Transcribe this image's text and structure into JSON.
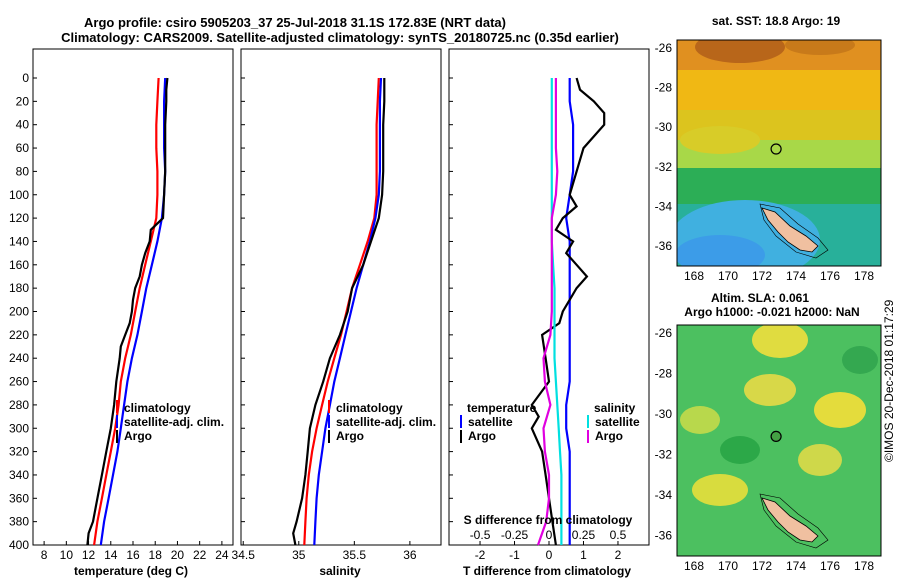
{
  "title_line1": "Argo profile: csiro 5905203_37 25-Jul-2018 31.1S 172.83E (NRT data)",
  "title_line2": "Climatology: CARS2009. Satellite-adjusted climatology: synTS_20180725.nc (0.35d earlier)",
  "credit": "©IMOS 20-Dec-2018 01:17:29",
  "colors": {
    "climatology": "#ff0000",
    "satellite": "#0000ff",
    "argo": "#000000",
    "sat_s": "#00e0e0",
    "argo_s": "#e000e0"
  },
  "chart_data": [
    {
      "type": "line",
      "id": "temperature",
      "xlabel": "temperature (deg C)",
      "xlim": [
        7,
        25
      ],
      "xticks": [
        8,
        10,
        12,
        14,
        16,
        18,
        20,
        22,
        24
      ],
      "ylim": [
        0,
        400
      ],
      "yticks": [
        0,
        20,
        40,
        60,
        80,
        100,
        120,
        140,
        160,
        180,
        200,
        220,
        240,
        260,
        280,
        300,
        320,
        340,
        360,
        380,
        400
      ],
      "legend": [
        "climatology",
        "satellite-adj. clim.",
        "Argo"
      ],
      "series": [
        {
          "name": "climatology",
          "color": "#ff0000",
          "depth": [
            0,
            20,
            40,
            60,
            80,
            100,
            120,
            140,
            160,
            180,
            200,
            220,
            240,
            260,
            280,
            300,
            320,
            340,
            360,
            380,
            400
          ],
          "values": [
            18.3,
            18.2,
            18.1,
            18.1,
            18.2,
            18.2,
            18.1,
            17.6,
            17.1,
            16.6,
            16.2,
            15.8,
            15.3,
            14.9,
            14.7,
            14.4,
            14.0,
            13.6,
            13.2,
            12.8,
            12.5
          ]
        },
        {
          "name": "satellite-adj. clim.",
          "color": "#0000ff",
          "depth": [
            0,
            20,
            40,
            60,
            80,
            100,
            120,
            140,
            160,
            180,
            200,
            220,
            240,
            260,
            280,
            300,
            320,
            340,
            360,
            380,
            400
          ],
          "values": [
            18.9,
            18.8,
            18.8,
            18.8,
            18.9,
            18.8,
            18.6,
            18.2,
            17.7,
            17.2,
            16.8,
            16.4,
            15.9,
            15.5,
            15.2,
            14.9,
            14.6,
            14.2,
            13.8,
            13.4,
            13.1
          ]
        },
        {
          "name": "Argo",
          "color": "#000000",
          "depth": [
            0,
            10,
            20,
            40,
            60,
            80,
            100,
            120,
            130,
            140,
            150,
            160,
            170,
            180,
            190,
            200,
            210,
            220,
            230,
            240,
            260,
            280,
            300,
            320,
            340,
            360,
            380,
            390,
            400
          ],
          "values": [
            19.1,
            19.0,
            19.0,
            18.9,
            18.9,
            18.9,
            18.8,
            18.7,
            17.6,
            17.5,
            17.1,
            16.8,
            16.6,
            16.2,
            16.0,
            15.9,
            15.7,
            15.3,
            14.9,
            14.8,
            14.5,
            14.3,
            14.0,
            13.6,
            13.2,
            12.8,
            12.4,
            12.0,
            11.9
          ]
        }
      ]
    },
    {
      "type": "line",
      "id": "salinity",
      "xlabel": "salinity",
      "xlim": [
        34.48,
        36.28
      ],
      "xticks": [
        34.5,
        35,
        35.5,
        36
      ],
      "xticklabels": [
        "34.5",
        "35",
        "35.5",
        "36"
      ],
      "ylim": [
        0,
        400
      ],
      "legend": [
        "climatology",
        "satellite-adj. clim.",
        "Argo"
      ],
      "series": [
        {
          "name": "climatology",
          "color": "#ff0000",
          "depth": [
            0,
            20,
            40,
            60,
            80,
            100,
            120,
            140,
            160,
            180,
            200,
            220,
            240,
            260,
            280,
            300,
            320,
            340,
            360,
            380,
            400
          ],
          "values": [
            35.72,
            35.71,
            35.7,
            35.7,
            35.7,
            35.7,
            35.68,
            35.62,
            35.55,
            35.48,
            35.43,
            35.38,
            35.32,
            35.26,
            35.21,
            35.16,
            35.12,
            35.09,
            35.07,
            35.06,
            35.05
          ]
        },
        {
          "name": "satellite-adj. clim.",
          "color": "#0000ff",
          "depth": [
            0,
            20,
            40,
            60,
            80,
            100,
            120,
            140,
            160,
            180,
            200,
            220,
            240,
            260,
            280,
            300,
            320,
            340,
            360,
            380,
            400
          ],
          "values": [
            35.74,
            35.73,
            35.73,
            35.73,
            35.73,
            35.72,
            35.69,
            35.64,
            35.58,
            35.52,
            35.47,
            35.42,
            35.37,
            35.32,
            35.28,
            35.24,
            35.21,
            35.18,
            35.16,
            35.15,
            35.14
          ]
        },
        {
          "name": "Argo",
          "color": "#000000",
          "depth": [
            0,
            20,
            40,
            60,
            80,
            100,
            120,
            140,
            160,
            180,
            200,
            220,
            240,
            260,
            280,
            300,
            320,
            340,
            360,
            380,
            390,
            400
          ],
          "values": [
            35.77,
            35.77,
            35.76,
            35.76,
            35.76,
            35.75,
            35.72,
            35.65,
            35.58,
            35.48,
            35.44,
            35.37,
            35.28,
            35.22,
            35.15,
            35.1,
            35.08,
            35.06,
            35.03,
            34.98,
            34.95,
            34.97
          ]
        }
      ]
    },
    {
      "type": "line",
      "id": "difference",
      "xlabel": "T difference from climatology",
      "xlabel2": "S difference from climatology",
      "xlim": [
        -2.9,
        2.9
      ],
      "xticks": [
        -2,
        -1,
        0,
        1,
        2
      ],
      "xticks2": [
        -0.5,
        -0.25,
        0,
        0.25,
        0.5
      ],
      "xticks2labels": [
        "-0.5",
        "-0.25",
        "0",
        "0.25",
        "0.5"
      ],
      "ylim": [
        0,
        400
      ],
      "legend_temperature": {
        "title": "temperature",
        "items": [
          "satellite",
          "Argo"
        ]
      },
      "legend_salinity": {
        "title": "salinity",
        "items": [
          "satellite",
          "Argo"
        ]
      },
      "series": [
        {
          "name": "T satellite",
          "color": "#0000ff",
          "depth": [
            0,
            20,
            40,
            60,
            80,
            100,
            120,
            140,
            160,
            180,
            200,
            220,
            240,
            260,
            280,
            300,
            320,
            340,
            360,
            380,
            400
          ],
          "values": [
            0.6,
            0.6,
            0.7,
            0.7,
            0.7,
            0.6,
            0.5,
            0.6,
            0.6,
            0.6,
            0.6,
            0.6,
            0.6,
            0.6,
            0.5,
            0.5,
            0.6,
            0.6,
            0.6,
            0.6,
            0.6
          ]
        },
        {
          "name": "T Argo",
          "color": "#000000",
          "depth": [
            0,
            10,
            20,
            30,
            40,
            60,
            80,
            100,
            110,
            120,
            130,
            140,
            150,
            160,
            170,
            180,
            190,
            200,
            210,
            220,
            240,
            260,
            280,
            290,
            300,
            320,
            340,
            360,
            380,
            400
          ],
          "values": [
            0.8,
            0.9,
            1.3,
            1.6,
            1.6,
            1.0,
            0.8,
            0.6,
            0.8,
            0.4,
            0.2,
            0.7,
            0.5,
            0.8,
            1.1,
            0.8,
            0.6,
            0.4,
            0.3,
            -0.2,
            -0.1,
            0.0,
            -0.5,
            -0.3,
            -0.5,
            -0.2,
            -0.1,
            0.0,
            0.1,
            0.2
          ]
        },
        {
          "name": "S satellite",
          "color": "#00e0e0",
          "depth": [
            0,
            100,
            120,
            140,
            160,
            180,
            200,
            220,
            240,
            260,
            280,
            300,
            320,
            340,
            360,
            380,
            400
          ],
          "values": [
            0.02,
            0.02,
            0.02,
            0.02,
            0.03,
            0.04,
            0.04,
            0.04,
            0.04,
            0.05,
            0.06,
            0.07,
            0.08,
            0.09,
            0.09,
            0.09,
            0.09
          ]
        },
        {
          "name": "S Argo",
          "color": "#e000e0",
          "depth": [
            0,
            20,
            40,
            60,
            80,
            100,
            120,
            140,
            160,
            180,
            200,
            220,
            240,
            260,
            280,
            300,
            320,
            340,
            360,
            380,
            400
          ],
          "values": [
            0.05,
            0.05,
            0.05,
            0.05,
            0.06,
            0.05,
            0.02,
            0.02,
            0.02,
            0.02,
            0.02,
            0.01,
            -0.04,
            -0.03,
            0.01,
            -0.04,
            -0.03,
            0.0,
            0.0,
            -0.02,
            -0.08
          ]
        }
      ]
    },
    {
      "type": "heatmap",
      "id": "sst_map",
      "title": "sat. SST: 18.8 Argo: 19",
      "xlim": [
        167,
        179
      ],
      "xticks": [
        168,
        170,
        172,
        174,
        176,
        178
      ],
      "ylim": [
        -37,
        -25.6
      ],
      "yticks": [
        -26,
        -28,
        -30,
        -32,
        -34,
        -36
      ],
      "argo_position": [
        172.83,
        -31.1
      ]
    },
    {
      "type": "heatmap",
      "id": "sla_map",
      "title_line1": "Altim. SLA: 0.061",
      "title_line2": "Argo h1000: -0.021 h2000: NaN",
      "xlim": [
        167,
        179
      ],
      "xticks": [
        168,
        170,
        172,
        174,
        176,
        178
      ],
      "ylim": [
        -37,
        -25.6
      ],
      "yticks": [
        -26,
        -28,
        -30,
        -32,
        -34,
        -36
      ],
      "argo_position": [
        172.83,
        -31.1
      ]
    }
  ]
}
